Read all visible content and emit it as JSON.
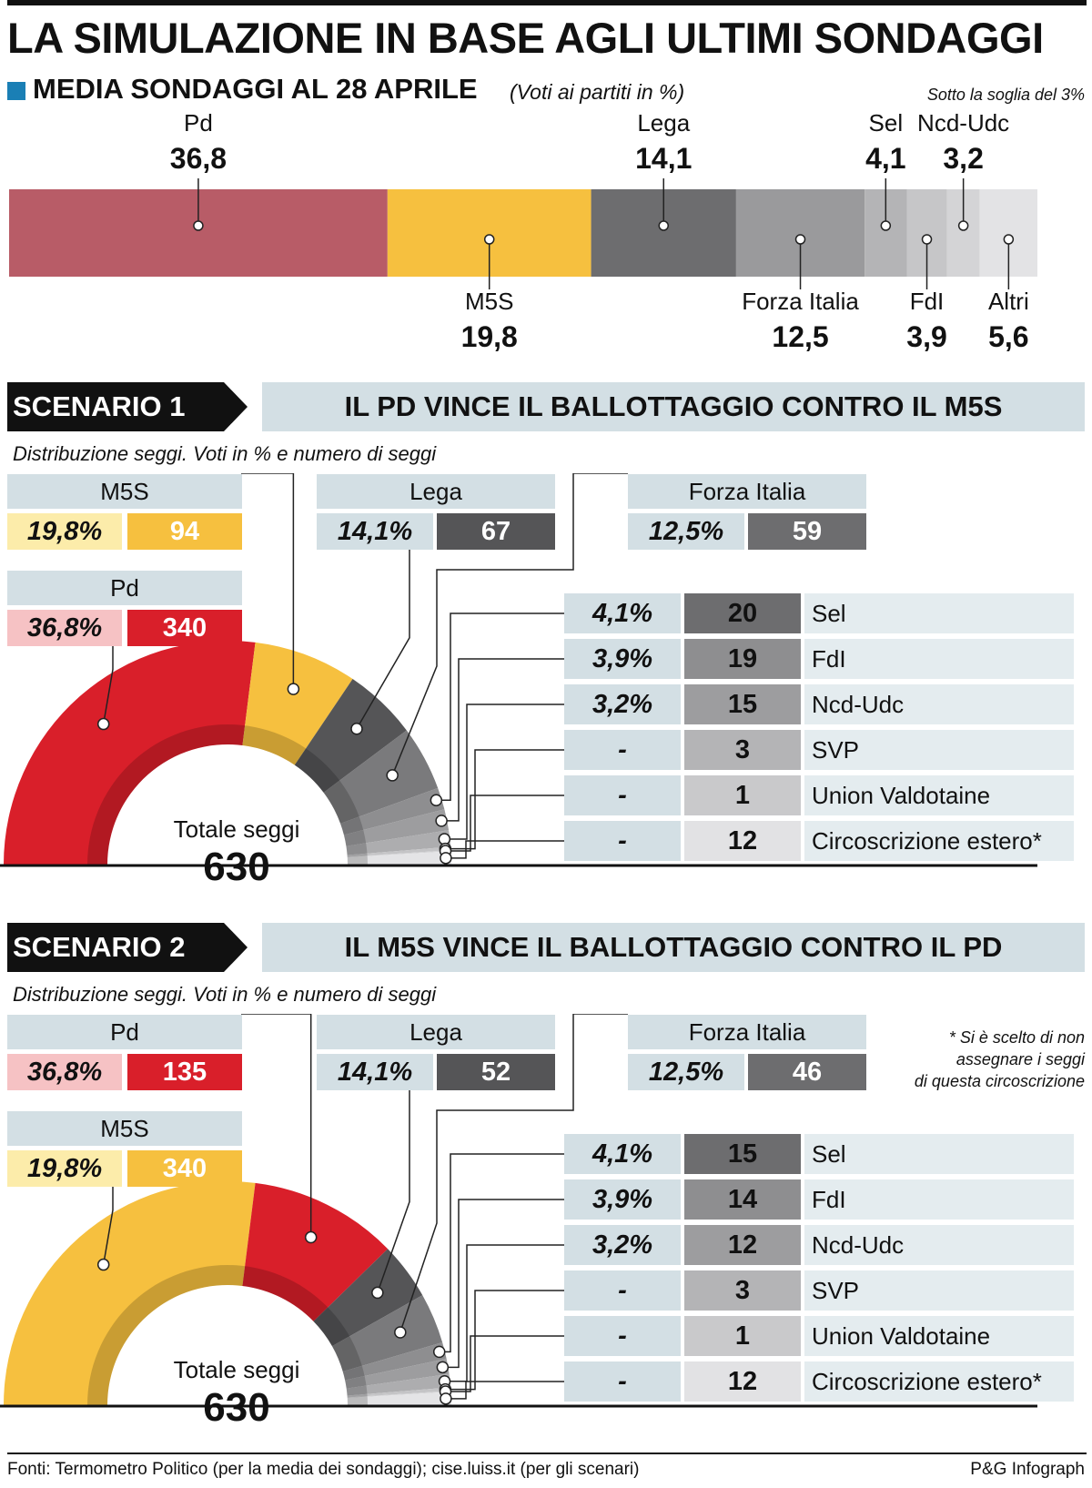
{
  "title": "LA SIMULAZIONE IN BASE AGLI ULTIMI SONDAGGI",
  "subtitle": "MEDIA SONDAGGI AL 28 APRILE",
  "subtitle_note": "(Voti ai partiti in %)",
  "threshold_note": "Sotto la soglia del 3%",
  "colors": {
    "pd_bar": "#b85c67",
    "m5s": "#f6c03f",
    "lega": "#6d6d6f",
    "fi": "#9a9a9c",
    "pd_red": "#d91f2a",
    "legend_blue": "#1a7fb5",
    "panel": "#d3dfe4"
  },
  "chart_data": [
    {
      "type": "bar",
      "title": "MEDIA SONDAGGI AL 28 APRILE",
      "stacked": true,
      "categories": [
        "Pd",
        "M5S",
        "Lega",
        "Forza Italia",
        "Sel",
        "FdI",
        "Ncd-Udc",
        "Altri"
      ],
      "values": [
        36.8,
        19.8,
        14.1,
        12.5,
        4.1,
        3.9,
        3.2,
        5.6
      ],
      "labels": [
        "36,8",
        "19,8",
        "14,1",
        "12,5",
        "4,1",
        "3,9",
        "3,2",
        "5,6"
      ],
      "colors": [
        "#b85c67",
        "#f6c03f",
        "#6d6d6f",
        "#9a9a9c",
        "#b4b4b6",
        "#c6c6c8",
        "#d4d4d6",
        "#e3e3e5"
      ]
    },
    {
      "type": "pie",
      "semicircle": true,
      "title": "IL PD VINCE IL BALLOTTAGGIO CONTRO IL M5S",
      "categories": [
        "Pd",
        "M5S",
        "Lega",
        "Forza Italia",
        "Sel",
        "FdI",
        "Ncd-Udc",
        "SVP",
        "Union Valdotaine",
        "Circoscrizione estero*"
      ],
      "values": [
        340,
        94,
        67,
        59,
        20,
        19,
        15,
        3,
        1,
        12
      ],
      "colors": [
        "#d91f2a",
        "#f6c03f",
        "#555557",
        "#7a7a7c",
        "#8e8e90",
        "#9d9d9f",
        "#adadaf",
        "#c4c4c6",
        "#d2d2d4",
        "#e4e4e6"
      ]
    },
    {
      "type": "pie",
      "semicircle": true,
      "title": "IL M5S VINCE IL BALLOTTAGGIO CONTRO IL PD",
      "categories": [
        "M5S",
        "Pd",
        "Lega",
        "Forza Italia",
        "Sel",
        "FdI",
        "Ncd-Udc",
        "SVP",
        "Union Valdotaine",
        "Circoscrizione estero*"
      ],
      "values": [
        340,
        135,
        52,
        46,
        15,
        14,
        12,
        3,
        1,
        12
      ],
      "colors": [
        "#f6c03f",
        "#d91f2a",
        "#555557",
        "#7a7a7c",
        "#8e8e90",
        "#9d9d9f",
        "#adadaf",
        "#c4c4c6",
        "#d2d2d4",
        "#e4e4e6"
      ]
    }
  ],
  "bar_labels": [
    {
      "name": "Pd",
      "value": "36,8"
    },
    {
      "name": "M5S",
      "value": "19,8"
    },
    {
      "name": "Lega",
      "value": "14,1"
    },
    {
      "name": "Forza Italia",
      "value": "12,5"
    },
    {
      "name": "Sel",
      "value": "4,1"
    },
    {
      "name": "FdI",
      "value": "3,9"
    },
    {
      "name": "Ncd-Udc",
      "value": "3,2"
    },
    {
      "name": "Altri",
      "value": "5,6"
    }
  ],
  "distrib_label": "Distribuzione seggi. Voti in % e numero di seggi",
  "total_label": "Totale seggi",
  "total_value": "630",
  "scenario1": {
    "label": "SCENARIO 1",
    "title": "IL PD VINCE IL BALLOTTAGGIO CONTRO IL M5S",
    "first": {
      "name": "M5S",
      "pct": "19,8%",
      "seats": "94"
    },
    "second": {
      "name": "Pd",
      "pct": "36,8%",
      "seats": "340"
    },
    "lega": {
      "name": "Lega",
      "pct": "14,1%",
      "seats": "67"
    },
    "fi": {
      "name": "Forza Italia",
      "pct": "12,5%",
      "seats": "59"
    },
    "rows": [
      {
        "pct": "4,1%",
        "seats": "20",
        "name": "Sel"
      },
      {
        "pct": "3,9%",
        "seats": "19",
        "name": "FdI"
      },
      {
        "pct": "3,2%",
        "seats": "15",
        "name": "Ncd-Udc"
      },
      {
        "pct": "-",
        "seats": "3",
        "name": "SVP"
      },
      {
        "pct": "-",
        "seats": "1",
        "name": "Union Valdotaine"
      },
      {
        "pct": "-",
        "seats": "12",
        "name": "Circoscrizione estero*"
      }
    ]
  },
  "scenario2": {
    "label": "SCENARIO 2",
    "title": "IL M5S VINCE IL BALLOTTAGGIO CONTRO IL PD",
    "first": {
      "name": "Pd",
      "pct": "36,8%",
      "seats": "135"
    },
    "second": {
      "name": "M5S",
      "pct": "19,8%",
      "seats": "340"
    },
    "lega": {
      "name": "Lega",
      "pct": "14,1%",
      "seats": "52"
    },
    "fi": {
      "name": "Forza Italia",
      "pct": "12,5%",
      "seats": "46"
    },
    "rows": [
      {
        "pct": "4,1%",
        "seats": "15",
        "name": "Sel"
      },
      {
        "pct": "3,9%",
        "seats": "14",
        "name": "FdI"
      },
      {
        "pct": "3,2%",
        "seats": "12",
        "name": "Ncd-Udc"
      },
      {
        "pct": "-",
        "seats": "3",
        "name": "SVP"
      },
      {
        "pct": "-",
        "seats": "1",
        "name": "Union Valdotaine"
      },
      {
        "pct": "-",
        "seats": "12",
        "name": "Circoscrizione estero*"
      }
    ]
  },
  "footnote_lines": [
    "* Si è scelto di non",
    "assegnare i seggi",
    "di questa circoscrizione"
  ],
  "source": "Fonti: Termometro Politico (per la media dei sondaggi); cise.luiss.it (per gli scenari)",
  "credit": "P&G Infograph"
}
